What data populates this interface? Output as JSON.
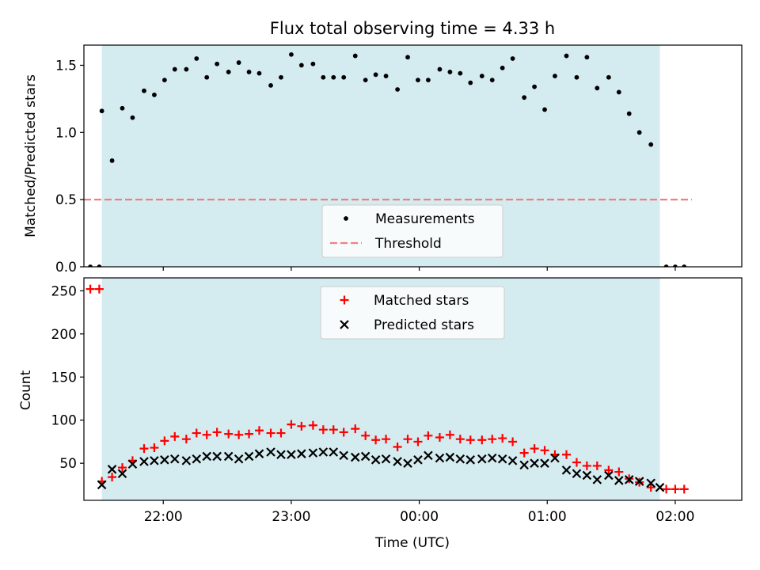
{
  "chart_data": {
    "title": "Flux total observing time = 4.33 h",
    "xlabel": "Time (UTC)",
    "x_tick_labels": [
      "22:00",
      "23:00",
      "00:00",
      "01:00",
      "02:00"
    ],
    "x_tick_hours": [
      22,
      23,
      24,
      25,
      26
    ],
    "x_range_hours": [
      21.38,
      26.52
    ],
    "shaded_region_hours": [
      21.52,
      25.88
    ],
    "colors": {
      "shade": "#d4ebf0",
      "measurements": "#000000",
      "threshold": "#f08080",
      "matched": "#ff0000",
      "predicted": "#000000"
    },
    "panels": [
      {
        "type": "scatter",
        "ylabel": "Matched/Predicted stars",
        "ylim": [
          0,
          1.65
        ],
        "yticks": [
          0.0,
          0.5,
          1.0,
          1.5
        ],
        "ytick_labels": [
          "0.0",
          "0.5",
          "1.0",
          "1.5"
        ],
        "legend_position": "bottom-center",
        "threshold": {
          "name": "Threshold",
          "value": 0.5,
          "x_range_hours": [
            21.38,
            26.13
          ]
        },
        "series": [
          {
            "name": "Measurements",
            "marker": "dot",
            "points": [
              [
                21.43,
                0.0
              ],
              [
                21.5,
                0.0
              ],
              [
                21.52,
                1.16
              ],
              [
                21.6,
                0.79
              ],
              [
                21.68,
                1.18
              ],
              [
                21.76,
                1.11
              ],
              [
                21.85,
                1.31
              ],
              [
                21.93,
                1.28
              ],
              [
                22.01,
                1.39
              ],
              [
                22.09,
                1.47
              ],
              [
                22.18,
                1.47
              ],
              [
                22.26,
                1.55
              ],
              [
                22.34,
                1.41
              ],
              [
                22.42,
                1.51
              ],
              [
                22.51,
                1.45
              ],
              [
                22.59,
                1.52
              ],
              [
                22.67,
                1.45
              ],
              [
                22.75,
                1.44
              ],
              [
                22.84,
                1.35
              ],
              [
                22.92,
                1.41
              ],
              [
                23.0,
                1.58
              ],
              [
                23.08,
                1.5
              ],
              [
                23.17,
                1.51
              ],
              [
                23.25,
                1.41
              ],
              [
                23.33,
                1.41
              ],
              [
                23.41,
                1.41
              ],
              [
                23.5,
                1.57
              ],
              [
                23.58,
                1.39
              ],
              [
                23.66,
                1.43
              ],
              [
                23.74,
                1.42
              ],
              [
                23.83,
                1.32
              ],
              [
                23.91,
                1.56
              ],
              [
                23.99,
                1.39
              ],
              [
                24.07,
                1.39
              ],
              [
                24.16,
                1.47
              ],
              [
                24.24,
                1.45
              ],
              [
                24.32,
                1.44
              ],
              [
                24.4,
                1.37
              ],
              [
                24.49,
                1.42
              ],
              [
                24.57,
                1.39
              ],
              [
                24.65,
                1.48
              ],
              [
                24.73,
                1.55
              ],
              [
                24.82,
                1.26
              ],
              [
                24.9,
                1.34
              ],
              [
                24.98,
                1.17
              ],
              [
                25.06,
                1.42
              ],
              [
                25.15,
                1.57
              ],
              [
                25.23,
                1.41
              ],
              [
                25.31,
                1.56
              ],
              [
                25.39,
                1.33
              ],
              [
                25.48,
                1.41
              ],
              [
                25.56,
                1.3
              ],
              [
                25.64,
                1.14
              ],
              [
                25.72,
                1.0
              ],
              [
                25.81,
                0.91
              ],
              [
                25.93,
                0.0
              ],
              [
                26.0,
                0.0
              ],
              [
                26.07,
                0.0
              ]
            ]
          }
        ]
      },
      {
        "type": "scatter",
        "ylabel": "Count",
        "ylim": [
          7,
          265
        ],
        "yticks": [
          50,
          100,
          150,
          200,
          250
        ],
        "ytick_labels": [
          "50",
          "100",
          "150",
          "200",
          "250"
        ],
        "legend_position": "top-center",
        "series": [
          {
            "name": "Matched stars",
            "marker": "plus",
            "points": [
              [
                21.43,
                252
              ],
              [
                21.5,
                252
              ],
              [
                21.52,
                29
              ],
              [
                21.6,
                34
              ],
              [
                21.68,
                45
              ],
              [
                21.76,
                53
              ],
              [
                21.85,
                67
              ],
              [
                21.93,
                68
              ],
              [
                22.01,
                76
              ],
              [
                22.09,
                81
              ],
              [
                22.18,
                78
              ],
              [
                22.26,
                85
              ],
              [
                22.34,
                83
              ],
              [
                22.42,
                86
              ],
              [
                22.51,
                84
              ],
              [
                22.59,
                83
              ],
              [
                22.67,
                84
              ],
              [
                22.75,
                88
              ],
              [
                22.84,
                85
              ],
              [
                22.92,
                85
              ],
              [
                23.0,
                95
              ],
              [
                23.08,
                93
              ],
              [
                23.17,
                94
              ],
              [
                23.25,
                89
              ],
              [
                23.33,
                89
              ],
              [
                23.41,
                86
              ],
              [
                23.5,
                90
              ],
              [
                23.58,
                82
              ],
              [
                23.66,
                77
              ],
              [
                23.74,
                78
              ],
              [
                23.83,
                69
              ],
              [
                23.91,
                78
              ],
              [
                23.99,
                75
              ],
              [
                24.07,
                82
              ],
              [
                24.16,
                80
              ],
              [
                24.24,
                83
              ],
              [
                24.32,
                78
              ],
              [
                24.4,
                77
              ],
              [
                24.49,
                77
              ],
              [
                24.57,
                78
              ],
              [
                24.65,
                79
              ],
              [
                24.73,
                75
              ],
              [
                24.82,
                62
              ],
              [
                24.9,
                67
              ],
              [
                24.98,
                65
              ],
              [
                25.06,
                60
              ],
              [
                25.15,
                60
              ],
              [
                25.23,
                51
              ],
              [
                25.31,
                47
              ],
              [
                25.39,
                47
              ],
              [
                25.48,
                42
              ],
              [
                25.56,
                40
              ],
              [
                25.64,
                32
              ],
              [
                25.72,
                28
              ],
              [
                25.81,
                22
              ],
              [
                25.93,
                20
              ],
              [
                26.0,
                20
              ],
              [
                26.07,
                20
              ]
            ]
          },
          {
            "name": "Predicted stars",
            "marker": "x",
            "points": [
              [
                21.52,
                25
              ],
              [
                21.6,
                43
              ],
              [
                21.68,
                38
              ],
              [
                21.76,
                49
              ],
              [
                21.85,
                52
              ],
              [
                21.93,
                53
              ],
              [
                22.01,
                54
              ],
              [
                22.09,
                55
              ],
              [
                22.18,
                53
              ],
              [
                22.26,
                55
              ],
              [
                22.34,
                58
              ],
              [
                22.42,
                58
              ],
              [
                22.51,
                58
              ],
              [
                22.59,
                55
              ],
              [
                22.67,
                58
              ],
              [
                22.75,
                61
              ],
              [
                22.84,
                63
              ],
              [
                22.92,
                60
              ],
              [
                23.0,
                60
              ],
              [
                23.08,
                61
              ],
              [
                23.17,
                62
              ],
              [
                23.25,
                63
              ],
              [
                23.33,
                63
              ],
              [
                23.41,
                59
              ],
              [
                23.5,
                57
              ],
              [
                23.58,
                58
              ],
              [
                23.66,
                54
              ],
              [
                23.74,
                55
              ],
              [
                23.83,
                52
              ],
              [
                23.91,
                50
              ],
              [
                23.99,
                54
              ],
              [
                24.07,
                59
              ],
              [
                24.16,
                56
              ],
              [
                24.24,
                57
              ],
              [
                24.32,
                55
              ],
              [
                24.4,
                54
              ],
              [
                24.49,
                55
              ],
              [
                24.57,
                56
              ],
              [
                24.65,
                55
              ],
              [
                24.73,
                53
              ],
              [
                24.82,
                48
              ],
              [
                24.9,
                50
              ],
              [
                24.98,
                50
              ],
              [
                25.06,
                56
              ],
              [
                25.15,
                42
              ],
              [
                25.23,
                38
              ],
              [
                25.31,
                36
              ],
              [
                25.39,
                31
              ],
              [
                25.48,
                36
              ],
              [
                25.56,
                30
              ],
              [
                25.64,
                31
              ],
              [
                25.72,
                29
              ],
              [
                25.81,
                27
              ],
              [
                25.88,
                22
              ]
            ]
          }
        ]
      }
    ]
  }
}
